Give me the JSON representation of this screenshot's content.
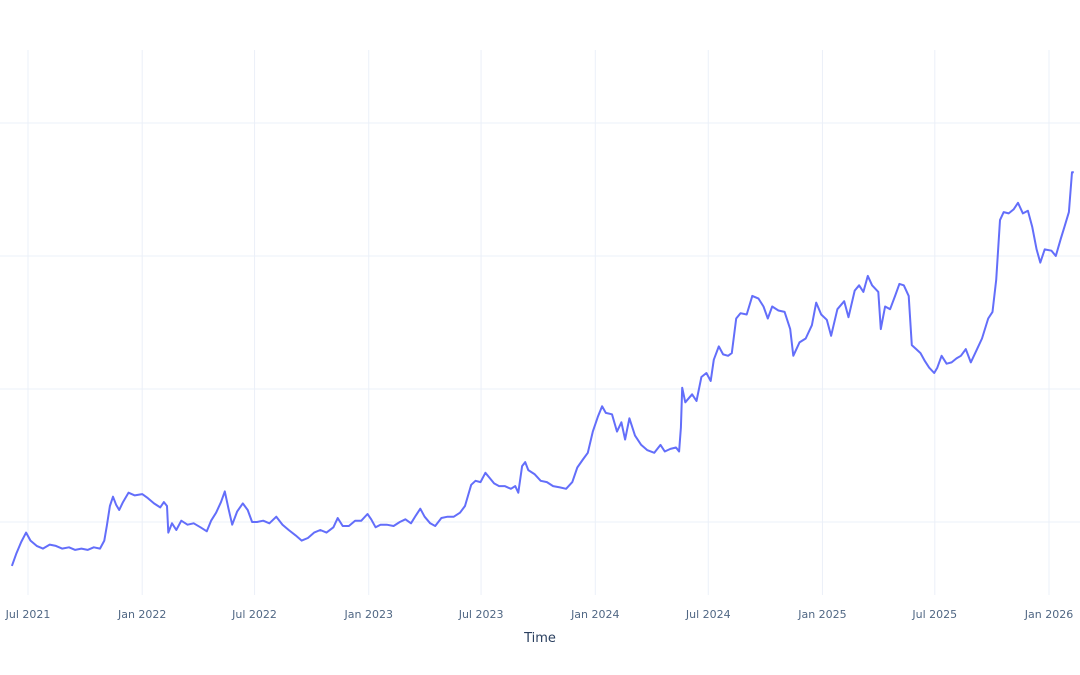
{
  "chart_data": {
    "type": "line",
    "title": "",
    "xlabel": "Time",
    "ylabel": "",
    "grid": true,
    "legend": "none",
    "line_color": "#636efa",
    "grid_color": "#ebf0f8",
    "y_units_note": "y-axis tick labels not visible; values expressed relative to horizontal gridlines (gridlines at 1, 2, 3, 4)",
    "y_gridlines": [
      1,
      2,
      3,
      4
    ],
    "ylim": [
      0.65,
      4.55
    ],
    "x_ticks": [
      {
        "label": "Jul 2021",
        "date": "2021-07-01"
      },
      {
        "label": "Jan 2022",
        "date": "2022-01-01"
      },
      {
        "label": "Jul 2022",
        "date": "2022-07-01"
      },
      {
        "label": "Jan 2023",
        "date": "2023-01-01"
      },
      {
        "label": "Jul 2023",
        "date": "2023-07-01"
      },
      {
        "label": "Jan 2024",
        "date": "2024-01-01"
      },
      {
        "label": "Jul 2024",
        "date": "2024-07-01"
      },
      {
        "label": "Jan 2025",
        "date": "2025-01-01"
      },
      {
        "label": "Jul 2025",
        "date": "2025-07-01"
      },
      {
        "label": "Jan 2026",
        "date": "2026-01-01"
      }
    ],
    "xlim": [
      "2021-06-05",
      "2026-02-10"
    ],
    "series": [
      {
        "name": "value",
        "points": [
          [
            "2021-06-05",
            0.67
          ],
          [
            "2021-06-12",
            0.76
          ],
          [
            "2021-06-20",
            0.85
          ],
          [
            "2021-06-28",
            0.92
          ],
          [
            "2021-07-05",
            0.86
          ],
          [
            "2021-07-15",
            0.82
          ],
          [
            "2021-07-25",
            0.8
          ],
          [
            "2021-08-05",
            0.83
          ],
          [
            "2021-08-15",
            0.82
          ],
          [
            "2021-08-25",
            0.8
          ],
          [
            "2021-09-05",
            0.81
          ],
          [
            "2021-09-15",
            0.79
          ],
          [
            "2021-09-25",
            0.8
          ],
          [
            "2021-10-05",
            0.79
          ],
          [
            "2021-10-15",
            0.81
          ],
          [
            "2021-10-25",
            0.8
          ],
          [
            "2021-11-01",
            0.86
          ],
          [
            "2021-11-05",
            0.97
          ],
          [
            "2021-11-10",
            1.12
          ],
          [
            "2021-11-15",
            1.19
          ],
          [
            "2021-11-20",
            1.13
          ],
          [
            "2021-11-25",
            1.09
          ],
          [
            "2021-12-01",
            1.15
          ],
          [
            "2021-12-10",
            1.22
          ],
          [
            "2021-12-20",
            1.2
          ],
          [
            "2022-01-01",
            1.21
          ],
          [
            "2022-01-10",
            1.18
          ],
          [
            "2022-01-20",
            1.14
          ],
          [
            "2022-01-30",
            1.11
          ],
          [
            "2022-02-05",
            1.15
          ],
          [
            "2022-02-10",
            1.12
          ],
          [
            "2022-02-12",
            0.92
          ],
          [
            "2022-02-18",
            0.99
          ],
          [
            "2022-02-25",
            0.94
          ],
          [
            "2022-03-05",
            1.01
          ],
          [
            "2022-03-15",
            0.98
          ],
          [
            "2022-03-25",
            0.99
          ],
          [
            "2022-04-05",
            0.96
          ],
          [
            "2022-04-15",
            0.93
          ],
          [
            "2022-04-22",
            1.01
          ],
          [
            "2022-04-30",
            1.07
          ],
          [
            "2022-05-08",
            1.15
          ],
          [
            "2022-05-14",
            1.23
          ],
          [
            "2022-05-20",
            1.1
          ],
          [
            "2022-05-26",
            0.98
          ],
          [
            "2022-06-03",
            1.08
          ],
          [
            "2022-06-12",
            1.14
          ],
          [
            "2022-06-20",
            1.09
          ],
          [
            "2022-06-27",
            1.0
          ],
          [
            "2022-07-05",
            1.0
          ],
          [
            "2022-07-15",
            1.01
          ],
          [
            "2022-07-25",
            0.99
          ],
          [
            "2022-08-05",
            1.04
          ],
          [
            "2022-08-15",
            0.98
          ],
          [
            "2022-08-25",
            0.94
          ],
          [
            "2022-09-05",
            0.9
          ],
          [
            "2022-09-15",
            0.86
          ],
          [
            "2022-09-25",
            0.88
          ],
          [
            "2022-10-05",
            0.92
          ],
          [
            "2022-10-15",
            0.94
          ],
          [
            "2022-10-25",
            0.92
          ],
          [
            "2022-11-05",
            0.96
          ],
          [
            "2022-11-12",
            1.03
          ],
          [
            "2022-11-20",
            0.97
          ],
          [
            "2022-11-30",
            0.97
          ],
          [
            "2022-12-10",
            1.01
          ],
          [
            "2022-12-20",
            1.01
          ],
          [
            "2022-12-30",
            1.06
          ],
          [
            "2023-01-05",
            1.02
          ],
          [
            "2023-01-12",
            0.96
          ],
          [
            "2023-01-20",
            0.98
          ],
          [
            "2023-01-30",
            0.98
          ],
          [
            "2023-02-10",
            0.97
          ],
          [
            "2023-02-20",
            1.0
          ],
          [
            "2023-03-01",
            1.02
          ],
          [
            "2023-03-10",
            0.99
          ],
          [
            "2023-03-18",
            1.05
          ],
          [
            "2023-03-25",
            1.1
          ],
          [
            "2023-04-01",
            1.04
          ],
          [
            "2023-04-10",
            0.99
          ],
          [
            "2023-04-18",
            0.97
          ],
          [
            "2023-04-28",
            1.03
          ],
          [
            "2023-05-08",
            1.04
          ],
          [
            "2023-05-18",
            1.04
          ],
          [
            "2023-05-28",
            1.07
          ],
          [
            "2023-06-05",
            1.12
          ],
          [
            "2023-06-10",
            1.2
          ],
          [
            "2023-06-15",
            1.28
          ],
          [
            "2023-06-22",
            1.31
          ],
          [
            "2023-06-30",
            1.3
          ],
          [
            "2023-07-08",
            1.37
          ],
          [
            "2023-07-15",
            1.33
          ],
          [
            "2023-07-22",
            1.29
          ],
          [
            "2023-07-30",
            1.27
          ],
          [
            "2023-08-08",
            1.27
          ],
          [
            "2023-08-18",
            1.25
          ],
          [
            "2023-08-25",
            1.27
          ],
          [
            "2023-08-30",
            1.22
          ],
          [
            "2023-09-05",
            1.42
          ],
          [
            "2023-09-10",
            1.45
          ],
          [
            "2023-09-15",
            1.39
          ],
          [
            "2023-09-25",
            1.36
          ],
          [
            "2023-10-05",
            1.31
          ],
          [
            "2023-10-15",
            1.3
          ],
          [
            "2023-10-25",
            1.27
          ],
          [
            "2023-11-05",
            1.26
          ],
          [
            "2023-11-15",
            1.25
          ],
          [
            "2023-11-25",
            1.3
          ],
          [
            "2023-12-03",
            1.41
          ],
          [
            "2023-12-12",
            1.47
          ],
          [
            "2023-12-20",
            1.52
          ],
          [
            "2023-12-28",
            1.68
          ],
          [
            "2024-01-05",
            1.79
          ],
          [
            "2024-01-12",
            1.87
          ],
          [
            "2024-01-18",
            1.82
          ],
          [
            "2024-01-28",
            1.81
          ],
          [
            "2024-02-05",
            1.68
          ],
          [
            "2024-02-12",
            1.75
          ],
          [
            "2024-02-18",
            1.62
          ],
          [
            "2024-02-25",
            1.78
          ],
          [
            "2024-03-05",
            1.65
          ],
          [
            "2024-03-15",
            1.58
          ],
          [
            "2024-03-25",
            1.54
          ],
          [
            "2024-04-05",
            1.52
          ],
          [
            "2024-04-15",
            1.58
          ],
          [
            "2024-04-22",
            1.53
          ],
          [
            "2024-05-01",
            1.55
          ],
          [
            "2024-05-10",
            1.56
          ],
          [
            "2024-05-15",
            1.53
          ],
          [
            "2024-05-18",
            1.71
          ],
          [
            "2024-05-20",
            2.01
          ],
          [
            "2024-05-25",
            1.9
          ],
          [
            "2024-06-05",
            1.96
          ],
          [
            "2024-06-12",
            1.91
          ],
          [
            "2024-06-20",
            2.09
          ],
          [
            "2024-06-28",
            2.12
          ],
          [
            "2024-07-05",
            2.06
          ],
          [
            "2024-07-10",
            2.22
          ],
          [
            "2024-07-18",
            2.32
          ],
          [
            "2024-07-25",
            2.26
          ],
          [
            "2024-08-02",
            2.25
          ],
          [
            "2024-08-08",
            2.27
          ],
          [
            "2024-08-15",
            2.53
          ],
          [
            "2024-08-22",
            2.57
          ],
          [
            "2024-09-01",
            2.56
          ],
          [
            "2024-09-10",
            2.7
          ],
          [
            "2024-09-20",
            2.68
          ],
          [
            "2024-09-28",
            2.62
          ],
          [
            "2024-10-05",
            2.53
          ],
          [
            "2024-10-12",
            2.62
          ],
          [
            "2024-10-22",
            2.59
          ],
          [
            "2024-11-01",
            2.58
          ],
          [
            "2024-11-10",
            2.45
          ],
          [
            "2024-11-15",
            2.25
          ],
          [
            "2024-11-25",
            2.35
          ],
          [
            "2024-12-05",
            2.38
          ],
          [
            "2024-12-15",
            2.48
          ],
          [
            "2024-12-22",
            2.65
          ],
          [
            "2024-12-30",
            2.56
          ],
          [
            "2025-01-08",
            2.52
          ],
          [
            "2025-01-15",
            2.4
          ],
          [
            "2025-01-25",
            2.6
          ],
          [
            "2025-02-05",
            2.66
          ],
          [
            "2025-02-12",
            2.54
          ],
          [
            "2025-02-22",
            2.74
          ],
          [
            "2025-03-01",
            2.78
          ],
          [
            "2025-03-08",
            2.73
          ],
          [
            "2025-03-15",
            2.85
          ],
          [
            "2025-03-22",
            2.78
          ],
          [
            "2025-04-01",
            2.73
          ],
          [
            "2025-04-05",
            2.45
          ],
          [
            "2025-04-12",
            2.62
          ],
          [
            "2025-04-20",
            2.6
          ],
          [
            "2025-04-28",
            2.7
          ],
          [
            "2025-05-05",
            2.79
          ],
          [
            "2025-05-12",
            2.78
          ],
          [
            "2025-05-20",
            2.7
          ],
          [
            "2025-05-25",
            2.33
          ],
          [
            "2025-06-01",
            2.3
          ],
          [
            "2025-06-08",
            2.27
          ],
          [
            "2025-06-15",
            2.21
          ],
          [
            "2025-06-22",
            2.16
          ],
          [
            "2025-06-30",
            2.12
          ],
          [
            "2025-07-05",
            2.16
          ],
          [
            "2025-07-12",
            2.25
          ],
          [
            "2025-07-20",
            2.19
          ],
          [
            "2025-07-28",
            2.2
          ],
          [
            "2025-08-05",
            2.23
          ],
          [
            "2025-08-12",
            2.25
          ],
          [
            "2025-08-20",
            2.3
          ],
          [
            "2025-08-28",
            2.2
          ],
          [
            "2025-09-05",
            2.28
          ],
          [
            "2025-09-15",
            2.38
          ],
          [
            "2025-09-25",
            2.53
          ],
          [
            "2025-10-02",
            2.58
          ],
          [
            "2025-10-08",
            2.82
          ],
          [
            "2025-10-14",
            3.27
          ],
          [
            "2025-10-20",
            3.33
          ],
          [
            "2025-10-28",
            3.32
          ],
          [
            "2025-11-05",
            3.35
          ],
          [
            "2025-11-12",
            3.4
          ],
          [
            "2025-11-20",
            3.32
          ],
          [
            "2025-11-28",
            3.34
          ],
          [
            "2025-12-05",
            3.22
          ],
          [
            "2025-12-12",
            3.05
          ],
          [
            "2025-12-18",
            2.95
          ],
          [
            "2025-12-25",
            3.05
          ],
          [
            "2026-01-05",
            3.04
          ],
          [
            "2026-01-12",
            3.0
          ],
          [
            "2026-01-20",
            3.13
          ],
          [
            "2026-01-26",
            3.22
          ],
          [
            "2026-02-02",
            3.33
          ],
          [
            "2026-02-07",
            3.63
          ],
          [
            "2026-02-10",
            3.63
          ]
        ]
      }
    ]
  }
}
